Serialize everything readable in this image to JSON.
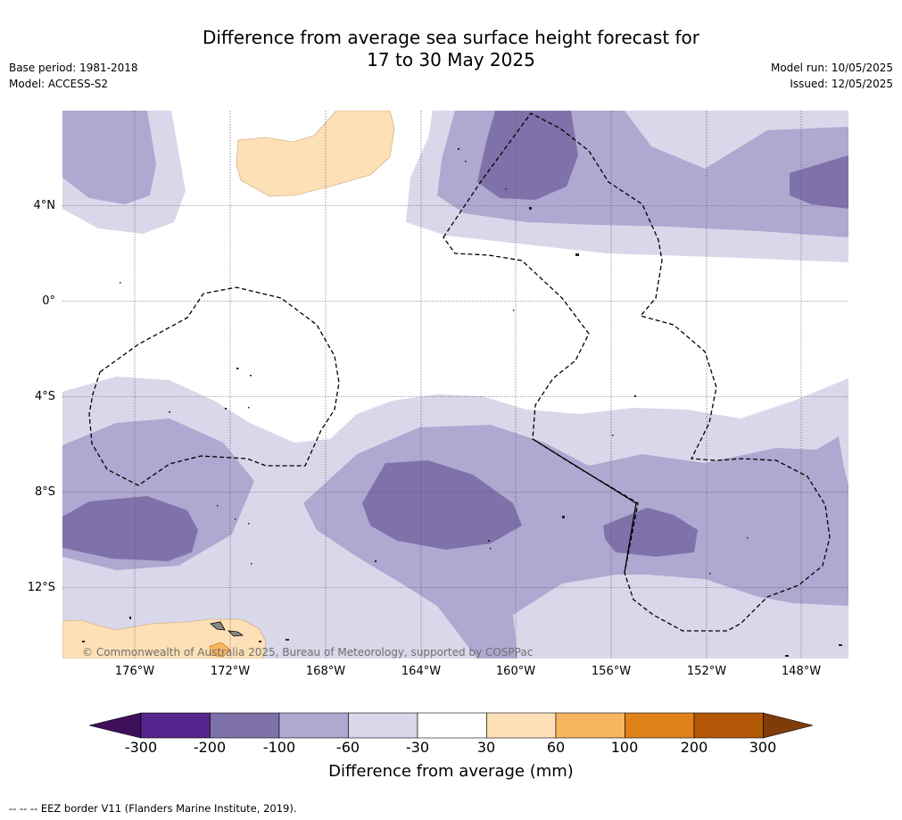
{
  "title_line1": "Difference from average sea surface height forecast for",
  "title_line2": "17 to 30 May 2025",
  "base_period": "Base period: 1981-2018",
  "model": "Model: ACCESS-S2",
  "model_run": "Model run: 10/05/2025",
  "issued": "Issued: 12/05/2025",
  "copyright": "© Commonwealth of Australia 2025, Bureau of Meteorology, supported by COSPPac",
  "lat_labels": [
    "4°N",
    "0°",
    "4°S",
    "8°S",
    "12°S"
  ],
  "lon_labels": [
    "176°W",
    "172°W",
    "168°W",
    "164°W",
    "160°W",
    "156°W",
    "152°W",
    "148°W"
  ],
  "colorbar": {
    "title": "Difference from average (mm)",
    "ticks": [
      "-300",
      "-200",
      "-100",
      "-60",
      "-30",
      "30",
      "60",
      "100",
      "200",
      "300"
    ],
    "colors": [
      "#3f0f5c",
      "#56248c",
      "#7f72ab",
      "#afa8d0",
      "#d8d8ea",
      "#ffffff",
      "#fee0b6",
      "#f8b560",
      "#e08218",
      "#b35806",
      "#7f3b08"
    ]
  },
  "footnote": "--  --  -- EEZ border V11 (Flanders Marine Institute, 2019)."
}
